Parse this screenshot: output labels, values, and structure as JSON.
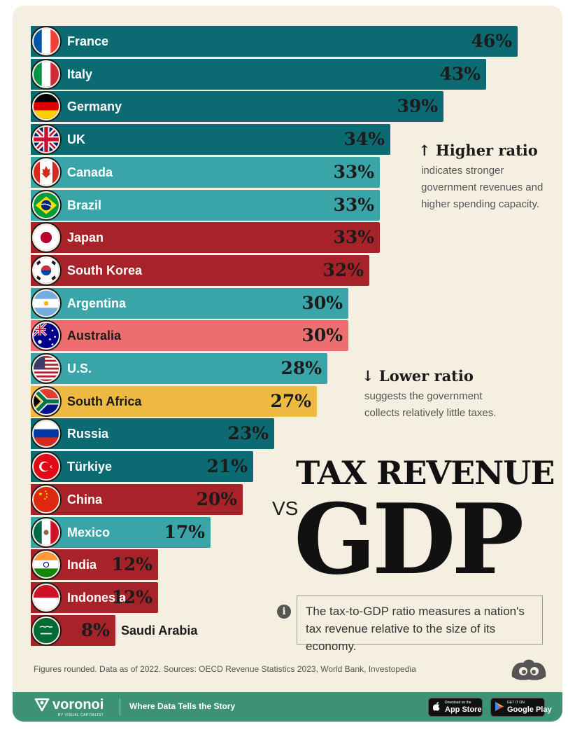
{
  "chart_data": {
    "type": "bar",
    "orientation": "horizontal",
    "title": "TAX REVENUE",
    "title_vs": "VS",
    "title_main": "GDP",
    "unit": "%",
    "categories": [
      "France",
      "Italy",
      "Germany",
      "UK",
      "Canada",
      "Brazil",
      "Japan",
      "South Korea",
      "Argentina",
      "Australia",
      "U.S.",
      "South Africa",
      "Russia",
      "Türkiye",
      "China",
      "Mexico",
      "India",
      "Indonesia",
      "Saudi Arabia"
    ],
    "values": [
      46,
      43,
      39,
      34,
      33,
      33,
      33,
      32,
      30,
      30,
      28,
      27,
      23,
      21,
      20,
      17,
      12,
      12,
      8
    ],
    "value_labels": [
      "46%",
      "43%",
      "39%",
      "34%",
      "33%",
      "33%",
      "33%",
      "32%",
      "30%",
      "30%",
      "28%",
      "27%",
      "23%",
      "21%",
      "20%",
      "17%",
      "12%",
      "12%",
      "8%"
    ],
    "bar_colors": [
      "#0c6a73",
      "#0c6a73",
      "#0c6a73",
      "#0c6a73",
      "#3aa5a8",
      "#3aa5a8",
      "#a72229",
      "#a72229",
      "#3aa5a8",
      "#ee6d6e",
      "#3aa5a8",
      "#efba41",
      "#0c6a73",
      "#0c6a73",
      "#a72229",
      "#3aa5a8",
      "#a72229",
      "#a72229",
      "#a72229"
    ],
    "flag_icons": [
      "france-flag-icon",
      "italy-flag-icon",
      "germany-flag-icon",
      "uk-flag-icon",
      "canada-flag-icon",
      "brazil-flag-icon",
      "japan-flag-icon",
      "south-korea-flag-icon",
      "argentina-flag-icon",
      "australia-flag-icon",
      "us-flag-icon",
      "south-africa-flag-icon",
      "russia-flag-icon",
      "turkiye-flag-icon",
      "china-flag-icon",
      "mexico-flag-icon",
      "india-flag-icon",
      "indonesia-flag-icon",
      "saudi-arabia-flag-icon"
    ],
    "xlim": [
      0,
      46
    ],
    "grid": false,
    "legend": "none"
  },
  "annotations": {
    "higher": {
      "arrow": "↑",
      "title": "Higher ratio",
      "body": "indicates stronger government revenues and higher spending capacity."
    },
    "lower": {
      "arrow": "↓",
      "title": "Lower ratio",
      "body": "suggests the government collects relatively little taxes."
    }
  },
  "info": {
    "icon": "info-icon",
    "text": "The tax-to-GDP ratio measures a nation's tax revenue relative to the size of its economy."
  },
  "footnote": "Figures rounded. Data as of 2022. Sources: OECD Revenue Statistics 2023, World Bank, Investopedia",
  "footer": {
    "brand": "voronoi",
    "brand_sub": "BY VISUAL CAPITALIST",
    "tagline": "Where Data Tells the Story",
    "app_store_small": "Download on the",
    "app_store": "App Store",
    "google_play_small": "GET IT ON",
    "google_play": "Google Play"
  },
  "colors": {
    "background": "#f5efe1",
    "footer": "#3d9273",
    "text": "#1b1b1b"
  }
}
